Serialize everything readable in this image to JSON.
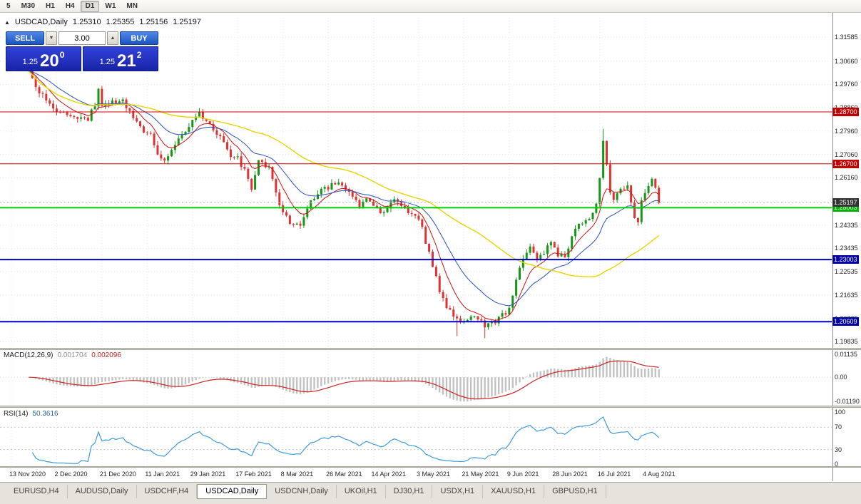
{
  "toolbar": {
    "timeframes": [
      {
        "label": "5"
      },
      {
        "label": "M30"
      },
      {
        "label": "H1"
      },
      {
        "label": "H4"
      },
      {
        "label": "D1"
      },
      {
        "label": "W1"
      },
      {
        "label": "MN"
      }
    ],
    "active": "D1"
  },
  "chart": {
    "symbol_line": {
      "collapse_icon": "▲",
      "title": "USDCAD,Daily",
      "open": "1.25310",
      "high": "1.25355",
      "low": "1.25156",
      "close": "1.25197"
    },
    "trade_panel": {
      "sell_label": "SELL",
      "buy_label": "BUY",
      "volume": "3.00",
      "spin_down_icon": "▼",
      "spin_up_icon": "▲",
      "sell_price": {
        "small": "1.25",
        "big": "20",
        "sup": "0"
      },
      "buy_price": {
        "small": "1.25",
        "big": "21",
        "sup": "2"
      }
    },
    "price_axis_ticks": [
      "1.31585",
      "1.30660",
      "1.29760",
      "1.28860",
      "1.27960",
      "1.27060",
      "1.26160",
      "1.25260",
      "1.24335",
      "1.23435",
      "1.22535",
      "1.21635",
      "1.20735",
      "1.19835"
    ],
    "hlines": [
      {
        "price": 1.287,
        "label": "1.28700",
        "line_color": "#d40000",
        "tag_color": "#c00000",
        "width": 1
      },
      {
        "price": 1.267,
        "label": "1.26700",
        "line_color": "#d40000",
        "tag_color": "#c00000",
        "width": 1
      },
      {
        "price": 1.25003,
        "label": "1.25003",
        "line_color": "#00cc00",
        "tag_color": "#00b400",
        "width": 2
      },
      {
        "price": 1.23003,
        "label": "1.23003",
        "line_color": "#0000c0",
        "tag_color": "#0000a8",
        "width": 2
      },
      {
        "price": 1.20609,
        "label": "1.20609",
        "line_color": "#0000c0",
        "tag_color": "#0000a8",
        "width": 2
      }
    ],
    "bid": {
      "price": 1.25197,
      "label": "1.25197",
      "tag_color": "#333333"
    },
    "candle_colors": {
      "up": "#169616",
      "down": "#de3232"
    },
    "candles": {
      "first_open": 1.306,
      "start_index": 5,
      "end_index": 186,
      "anchors": [
        [
          5,
          1.302
        ],
        [
          8,
          1.295
        ],
        [
          11,
          1.29
        ],
        [
          13,
          1.288
        ],
        [
          16,
          1.286
        ],
        [
          18,
          1.2845
        ],
        [
          22,
          1.2845
        ],
        [
          24,
          1.29
        ],
        [
          25,
          1.2955
        ],
        [
          26,
          1.289
        ],
        [
          29,
          1.2905
        ],
        [
          32,
          1.2915
        ],
        [
          35,
          1.284
        ],
        [
          38,
          1.28
        ],
        [
          40,
          1.2785
        ],
        [
          42,
          1.2705
        ],
        [
          44,
          1.268
        ],
        [
          47,
          1.2745
        ],
        [
          50,
          1.2785
        ],
        [
          52,
          1.2845
        ],
        [
          54,
          1.286
        ],
        [
          57,
          1.282
        ],
        [
          60,
          1.2775
        ],
        [
          63,
          1.2705
        ],
        [
          65,
          1.269
        ],
        [
          67,
          1.2645
        ],
        [
          69,
          1.2565
        ],
        [
          71,
          1.268
        ],
        [
          74,
          1.2655
        ],
        [
          76,
          1.256
        ],
        [
          78,
          1.248
        ],
        [
          80,
          1.2445
        ],
        [
          83,
          1.2425
        ],
        [
          86,
          1.253
        ],
        [
          89,
          1.2565
        ],
        [
          91,
          1.258
        ],
        [
          94,
          1.26
        ],
        [
          97,
          1.256
        ],
        [
          100,
          1.2505
        ],
        [
          102,
          1.253
        ],
        [
          104,
          1.25
        ],
        [
          107,
          1.2475
        ],
        [
          110,
          1.2535
        ],
        [
          113,
          1.2495
        ],
        [
          116,
          1.2465
        ],
        [
          118,
          1.243
        ],
        [
          119,
          1.237
        ],
        [
          121,
          1.228
        ],
        [
          123,
          1.218
        ],
        [
          125,
          1.212
        ],
        [
          128,
          1.207
        ],
        [
          130,
          1.206
        ],
        [
          133,
          1.209
        ],
        [
          136,
          1.204
        ],
        [
          139,
          1.206
        ],
        [
          141,
          1.2085
        ],
        [
          143,
          1.211
        ],
        [
          145,
          1.223
        ],
        [
          147,
          1.231
        ],
        [
          149,
          1.235
        ],
        [
          151,
          1.229
        ],
        [
          153,
          1.233
        ],
        [
          155,
          1.2365
        ],
        [
          157,
          1.232
        ],
        [
          159,
          1.231
        ],
        [
          161,
          1.239
        ],
        [
          163,
          1.243
        ],
        [
          165,
          1.245
        ],
        [
          167,
          1.248
        ],
        [
          168,
          1.252
        ],
        [
          169,
          1.261
        ],
        [
          170,
          1.275
        ],
        [
          171,
          1.267
        ],
        [
          172,
          1.256
        ],
        [
          173,
          1.253
        ],
        [
          175,
          1.258
        ],
        [
          177,
          1.2585
        ],
        [
          179,
          1.2465
        ],
        [
          180,
          1.2445
        ],
        [
          181,
          1.252
        ],
        [
          182,
          1.256
        ],
        [
          184,
          1.2615
        ],
        [
          185,
          1.258
        ],
        [
          186,
          1.25197
        ]
      ],
      "wick_marks": [
        {
          "i": 170,
          "high": 1.2805
        },
        {
          "i": 136,
          "low": 1.1997
        },
        {
          "i": 128,
          "low": 1.2005
        }
      ]
    },
    "moving_averages": [
      {
        "name": "fast-ma",
        "type": "ema",
        "period": 8,
        "color": "#cc1111",
        "width": 1
      },
      {
        "name": "medium-ma",
        "type": "ema",
        "period": 20,
        "color": "#2a52be",
        "width": 1
      },
      {
        "name": "slow-ma",
        "type": "sma",
        "period": 50,
        "color": "#e8d400",
        "width": 1.4
      }
    ],
    "dates": [
      "13 Nov 2020",
      "2 Dec 2020",
      "21 Dec 2020",
      "11 Jan 2021",
      "29 Jan 2021",
      "17 Feb 2021",
      "8 Mar 2021",
      "26 Mar 2021",
      "14 Apr 2021",
      "3 May 2021",
      "21 May 2021",
      "9 Jun 2021",
      "28 Jun 2021",
      "16 Jul 2021",
      "4 Aug 2021"
    ]
  },
  "macd": {
    "label": "MACD(12,26,9)",
    "value_main": "0.001704",
    "value_signal": "0.002096",
    "axis": [
      "0.01135",
      "0.00",
      "-0.01190"
    ],
    "axis_values": [
      0.01135,
      0,
      -0.0119
    ],
    "params": {
      "fast": 12,
      "slow": 26,
      "signal": 9
    },
    "colors": {
      "histogram": "#c2c2c2",
      "signal": "#cc2222"
    }
  },
  "rsi": {
    "label": "RSI(14)",
    "value": "50.3616",
    "axis": [
      "100",
      "70",
      "30",
      "0"
    ],
    "axis_values": [
      100,
      70,
      30,
      0
    ],
    "period": 14,
    "levels": [
      70,
      30
    ],
    "color": "#3e9ade"
  },
  "tabs": [
    {
      "label": "EURUSD,H4",
      "active": false
    },
    {
      "label": "AUDUSD,Daily",
      "active": false
    },
    {
      "label": "USDCHF,H4",
      "active": false
    },
    {
      "label": "USDCAD,Daily",
      "active": true
    },
    {
      "label": "USDCNH,Daily",
      "active": false
    },
    {
      "label": "UKOil,H1",
      "active": false
    },
    {
      "label": "DJ30,H1",
      "active": false
    },
    {
      "label": "USDX,H1",
      "active": false
    },
    {
      "label": "XAUUSD,H1",
      "active": false
    },
    {
      "label": "GBPUSD,H1",
      "active": false
    }
  ]
}
